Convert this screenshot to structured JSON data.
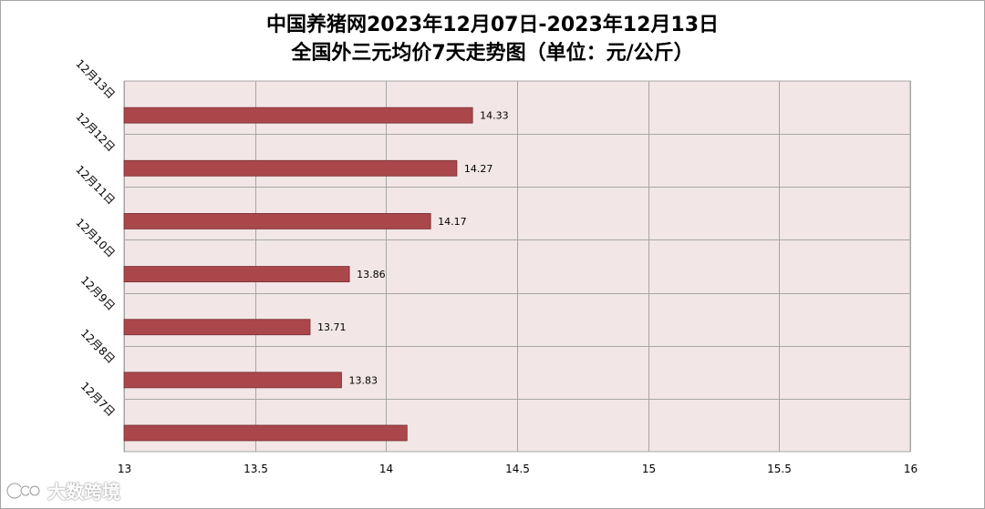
{
  "chart_data": {
    "type": "bar",
    "orientation": "horizontal",
    "title_line1": "中国养猪网2023年12月07日-2023年12月13日",
    "title_line2": "全国外三元均价7天走势图（单位：元/公斤）",
    "categories": [
      "12月13日",
      "12月12日",
      "12月11日",
      "12月10日",
      "12月9日",
      "12月8日",
      "12月7日"
    ],
    "values": [
      14.33,
      14.27,
      14.17,
      13.86,
      13.71,
      13.83,
      14.08
    ],
    "data_labels": [
      "14.33",
      "14.27",
      "14.17",
      "13.86",
      "13.71",
      "13.83",
      ""
    ],
    "xlim": [
      13,
      16
    ],
    "xticks": [
      "13",
      "13.5",
      "14",
      "14.5",
      "15",
      "15.5",
      "16"
    ],
    "grid": true,
    "bar_color": "#a9474a",
    "plot_bg": "#f2e6e6",
    "grid_color": "#a6a6a6"
  },
  "watermark": {
    "text": "大数跨境",
    "icon": "brand-logo-icon"
  }
}
